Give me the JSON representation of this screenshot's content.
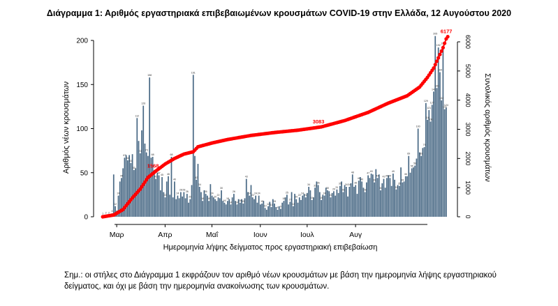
{
  "title": "Διάγραμμα 1: Αριθμός εργαστηριακά επιβεβαιωμένων κρουσμάτων COVID-19 στην Ελλάδα, 12 Αυγούστου 2020",
  "note": "Σημ.: οι στήλες στο Διάγραμμα 1 εκφράζουν τον αριθμό νέων κρουσμάτων με βάση την ημερομηνία λήψης εργαστηριακού δείγματος, και όχι με βάση την ημερομηνία ανακοίνωσης των κρουσμάτων.",
  "colors": {
    "bars": "#4a6a86",
    "cumulative": "#ff0000",
    "axis": "#000000"
  },
  "chart_data": {
    "type": "bar",
    "title": "Διάγραμμα 1: Αριθμός εργαστηριακά επιβεβαιωμένων κρουσμάτων COVID-19 στην Ελλάδα, 12 Αυγούστου 2020",
    "xlabel": "Ημερομηνία λήψης δείγματος προς εργαστηριακή επιβεβαίωση",
    "ylabel": "Αριθμός νέων κρουσμάτων",
    "y2label": "Συνολικός αριθμός κρουσμάτων",
    "ylim": [
      0,
      200
    ],
    "y2lim": [
      0,
      6000
    ],
    "yticks": [
      "0",
      "50",
      "100",
      "150",
      "200"
    ],
    "y2ticks": [
      "0",
      "1000",
      "2000",
      "3000",
      "4000",
      "5000",
      "6000"
    ],
    "x_month_labels": [
      "Μαρ",
      "Απρ",
      "Μαΐ",
      "Ιουν",
      "Ιουλ",
      "Αυγ"
    ],
    "grid": false,
    "series": [
      {
        "type": "bar",
        "axis": "left",
        "values": [
          1,
          1,
          2,
          0,
          2,
          3,
          4,
          48,
          12,
          7,
          24,
          40,
          44,
          55,
          67,
          70,
          64,
          70,
          61,
          71,
          53,
          55,
          112,
          86,
          72,
          98,
          126,
          83,
          73,
          69,
          158,
          67,
          68,
          53,
          43,
          50,
          47,
          30,
          45,
          28,
          22,
          40,
          46,
          25,
          68,
          22,
          40,
          20,
          24,
          21,
          28,
          23,
          28,
          21,
          26,
          16,
          20,
          36,
          161,
          69,
          42,
          60,
          34,
          28,
          18,
          30,
          26,
          24,
          18,
          37,
          24,
          22,
          20,
          18,
          22,
          21,
          30,
          18,
          16,
          14,
          18,
          20,
          14,
          22,
          26,
          18,
          14,
          20,
          16,
          20,
          15,
          21,
          43,
          28,
          24,
          36,
          22,
          20,
          24,
          16,
          24,
          14,
          15,
          18,
          10,
          8,
          12,
          17,
          11,
          20,
          15,
          11,
          8,
          12,
          9,
          16,
          18,
          22,
          25,
          14,
          17,
          28,
          12,
          26,
          20,
          16,
          22,
          19,
          24,
          26,
          22,
          27,
          34,
          30,
          19,
          22,
          33,
          40,
          36,
          28,
          19,
          25,
          24,
          33,
          30,
          29,
          22,
          27,
          29,
          24,
          31,
          27,
          35,
          40,
          28,
          36,
          34,
          23,
          34,
          38,
          48,
          34,
          36,
          26,
          41,
          45,
          40,
          33,
          28,
          39,
          47,
          44,
          49,
          48,
          39,
          54,
          44,
          48,
          30,
          38,
          43,
          33,
          44,
          47,
          44,
          35,
          49,
          42,
          31,
          36,
          35,
          56,
          39,
          40,
          46,
          46,
          69,
          50,
          55,
          56,
          58,
          66,
          100,
          73,
          69,
          78,
          79,
          129,
          110,
          121,
          108,
          127,
          142,
          205,
          146,
          192,
          164,
          132,
          194,
          122,
          124
        ]
      },
      {
        "type": "line",
        "axis": "right",
        "name": "cumulative",
        "anchors": [
          [
            0,
            0
          ],
          [
            7,
            62
          ],
          [
            13,
            250
          ],
          [
            19,
            650
          ],
          [
            24,
            950
          ],
          [
            29,
            1350
          ],
          [
            34,
            1568
          ],
          [
            40,
            1810
          ],
          [
            46,
            2000
          ],
          [
            52,
            2150
          ],
          [
            58,
            2230
          ],
          [
            61,
            2400
          ],
          [
            70,
            2530
          ],
          [
            80,
            2650
          ],
          [
            95,
            2790
          ],
          [
            110,
            2890
          ],
          [
            125,
            2970
          ],
          [
            140,
            3083
          ],
          [
            155,
            3300
          ],
          [
            170,
            3580
          ],
          [
            183,
            3900
          ],
          [
            195,
            4150
          ],
          [
            203,
            4450
          ],
          [
            208,
            4780
          ],
          [
            212,
            5100
          ],
          [
            215,
            5450
          ],
          [
            218,
            5800
          ],
          [
            220,
            6100
          ],
          [
            221,
            6177
          ]
        ],
        "labels": [
          {
            "day": 34,
            "text": "1568"
          },
          {
            "day": 140,
            "text": "3083"
          },
          {
            "day": 221,
            "text": "6177"
          }
        ]
      }
    ]
  }
}
